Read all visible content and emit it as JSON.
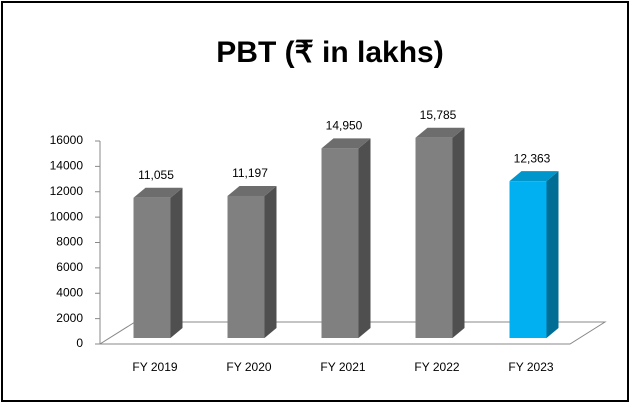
{
  "chart_data": {
    "type": "bar",
    "title": "PBT (₹ in lakhs)",
    "categories": [
      "FY 2019",
      "FY 2020",
      "FY 2021",
      "FY 2022",
      "FY 2023"
    ],
    "values": [
      11055,
      11197,
      14950,
      15785,
      12363
    ],
    "value_labels": [
      "11,055",
      "11,197",
      "14,950",
      "15,785",
      "12,363"
    ],
    "colors": [
      "#808080",
      "#808080",
      "#808080",
      "#808080",
      "#00b0f0"
    ],
    "ylim": [
      0,
      16000
    ],
    "yticks": [
      0,
      2000,
      4000,
      6000,
      8000,
      10000,
      12000,
      14000,
      16000
    ],
    "grid": false
  }
}
